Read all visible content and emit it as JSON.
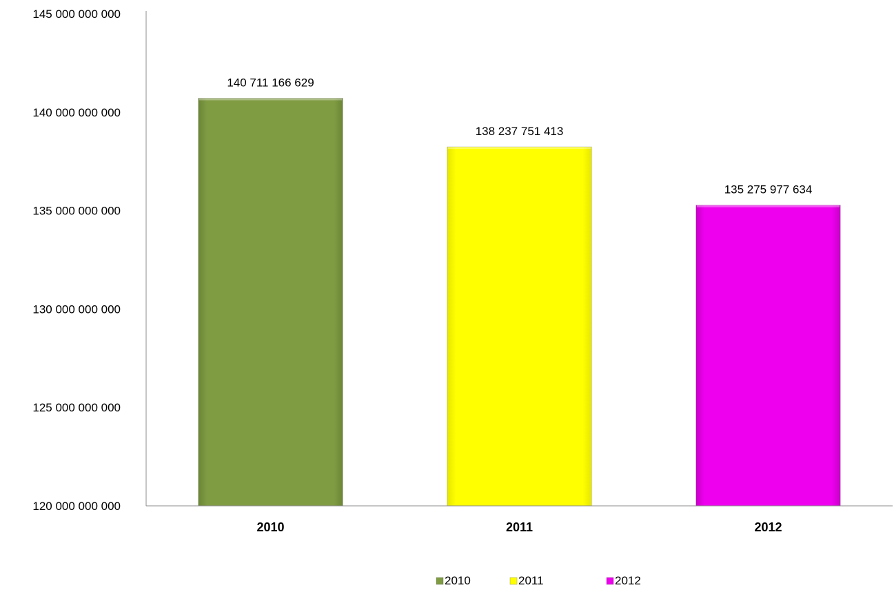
{
  "chart_data": {
    "type": "bar",
    "categories": [
      "2010",
      "2011",
      "2012"
    ],
    "values": [
      140711166629,
      138237751413,
      135275977634
    ],
    "value_labels": [
      "140 711 166 629",
      "138 237 751 413",
      "135 275 977 634"
    ],
    "colors": [
      "#809c43",
      "#ffff00",
      "#ee00ee"
    ],
    "ylim": [
      120000000000,
      145000000000
    ],
    "yticks": [
      120000000000,
      125000000000,
      130000000000,
      135000000000,
      140000000000,
      145000000000
    ],
    "ytick_labels": [
      "120 000 000 000",
      "125 000 000 000",
      "130 000 000 000",
      "135 000 000 000",
      "140 000 000 000",
      "145 000 000 000"
    ],
    "title": "",
    "xlabel": "",
    "ylabel": "",
    "grid": false,
    "legend": {
      "position": "bottom",
      "entries": [
        "2010",
        "2011",
        "2012"
      ]
    }
  }
}
